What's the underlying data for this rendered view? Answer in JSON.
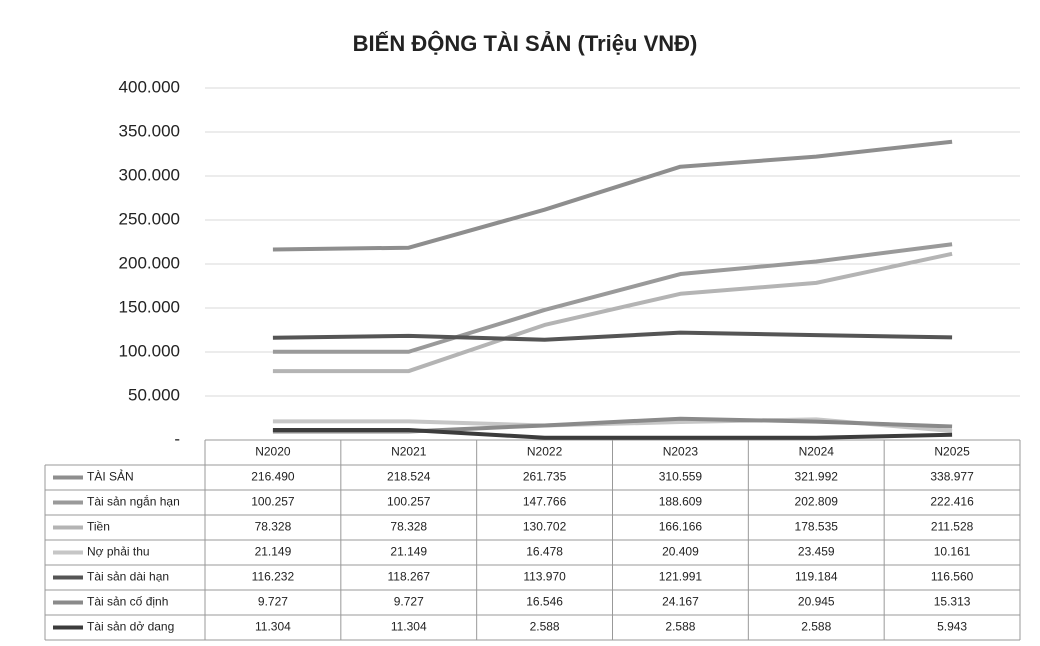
{
  "chart_data": {
    "type": "line",
    "title": "BIẾN ĐỘNG TÀI SẢN (Triệu VNĐ)",
    "categories": [
      "N2020",
      "N2021",
      "N2022",
      "N2023",
      "N2024",
      "N2025"
    ],
    "ylim": [
      0,
      400000
    ],
    "yticks": [
      {
        "value": 0,
        "label": "-"
      },
      {
        "value": 50000,
        "label": "50.000"
      },
      {
        "value": 100000,
        "label": "100.000"
      },
      {
        "value": 150000,
        "label": "150.000"
      },
      {
        "value": 200000,
        "label": "200.000"
      },
      {
        "value": 250000,
        "label": "250.000"
      },
      {
        "value": 300000,
        "label": "300.000"
      },
      {
        "value": 350000,
        "label": "350.000"
      },
      {
        "value": 400000,
        "label": "400.000"
      }
    ],
    "grid": true,
    "series": [
      {
        "name": "TÀI SẢN",
        "color": "#8e8e8e",
        "values": [
          216490,
          218524,
          261735,
          310559,
          321992,
          338977
        ],
        "value_labels": [
          "216.490",
          "218.524",
          "261.735",
          "310.559",
          "321.992",
          "338.977"
        ]
      },
      {
        "name": "Tài sản ngắn hạn",
        "color": "#9a9a9a",
        "values": [
          100257,
          100257,
          147766,
          188609,
          202809,
          222416
        ],
        "value_labels": [
          "100.257",
          "100.257",
          "147.766",
          "188.609",
          "202.809",
          "222.416"
        ]
      },
      {
        "name": "Tiền",
        "color": "#b4b4b4",
        "values": [
          78328,
          78328,
          130702,
          166166,
          178535,
          211528
        ],
        "value_labels": [
          "78.328",
          "78.328",
          "130.702",
          "166.166",
          "178.535",
          "211.528"
        ]
      },
      {
        "name": "Nợ phải thu",
        "color": "#c6c6c6",
        "values": [
          21149,
          21149,
          16478,
          20409,
          23459,
          10161
        ],
        "value_labels": [
          "21.149",
          "21.149",
          "16.478",
          "20.409",
          "23.459",
          "10.161"
        ]
      },
      {
        "name": "Tài sản dài hạn",
        "color": "#555555",
        "values": [
          116232,
          118267,
          113970,
          121991,
          119184,
          116560
        ],
        "value_labels": [
          "116.232",
          "118.267",
          "113.970",
          "121.991",
          "119.184",
          "116.560"
        ]
      },
      {
        "name": "Tài sản cố định",
        "color": "#8a8a8a",
        "values": [
          9727,
          9727,
          16546,
          24167,
          20945,
          15313
        ],
        "value_labels": [
          "9.727",
          "9.727",
          "16.546",
          "24.167",
          "20.945",
          "15.313"
        ]
      },
      {
        "name": "Tài sản dở dang",
        "color": "#3c3c3c",
        "values": [
          11304,
          11304,
          2588,
          2588,
          2588,
          5943
        ],
        "value_labels": [
          "11.304",
          "11.304",
          "2.588",
          "2.588",
          "2.588",
          "5.943"
        ]
      }
    ]
  }
}
